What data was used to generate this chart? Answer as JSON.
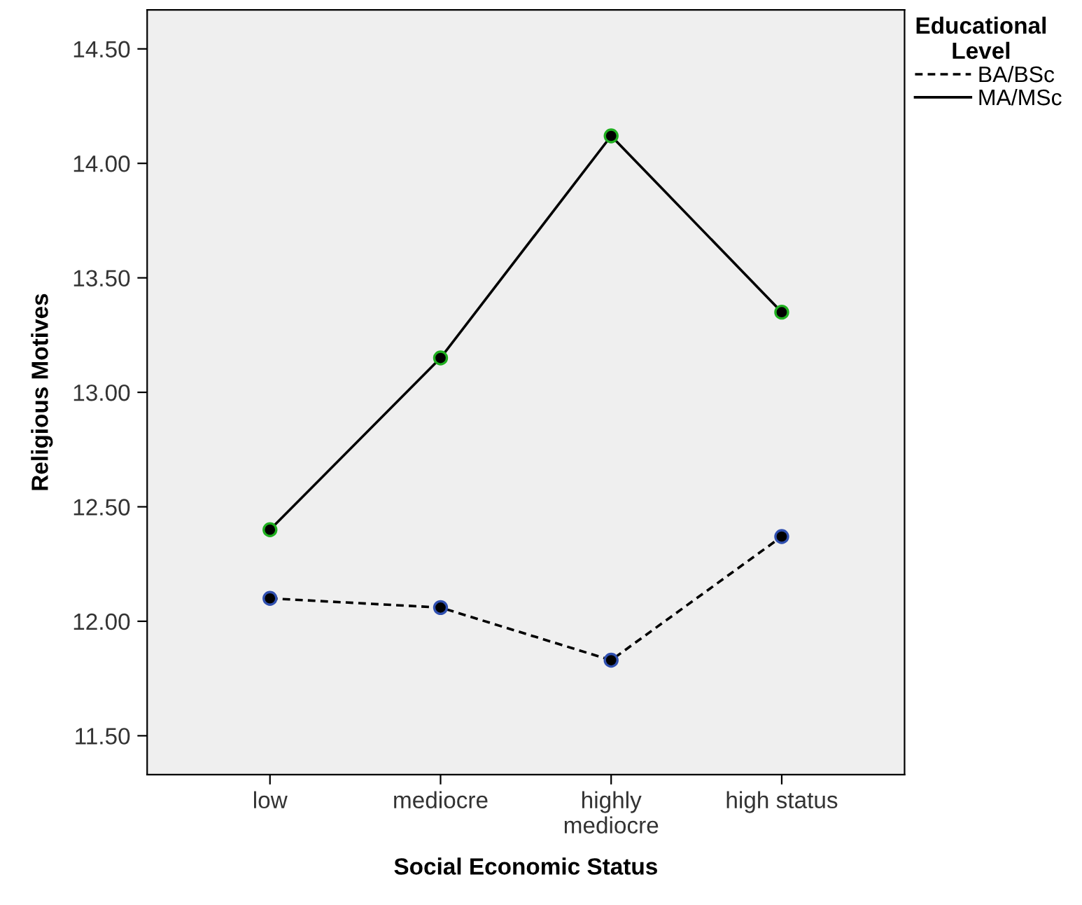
{
  "chart_data": {
    "type": "line",
    "xlabel": "Social Economic Status",
    "ylabel": "Religious Motives",
    "legend_title": "Educational\nLevel",
    "categories": [
      "low",
      "mediocre",
      "highly\nmediocre",
      "high status"
    ],
    "series": [
      {
        "name": "BA/BSc",
        "color": "#000000",
        "line_style": "dashed",
        "values": [
          12.1,
          12.06,
          11.83,
          12.37
        ]
      },
      {
        "name": "MA/MSc",
        "color": "#000000",
        "line_style": "solid",
        "values": [
          12.4,
          13.15,
          14.12,
          13.35
        ]
      }
    ],
    "ylim": [
      11.33,
      14.67
    ],
    "yticks": [
      {
        "value": 11.5,
        "label": "11.50"
      },
      {
        "value": 12,
        "label": "12.00"
      },
      {
        "value": 12.5,
        "label": "12.50"
      },
      {
        "value": 13,
        "label": "13.00"
      },
      {
        "value": 13.5,
        "label": "13.50"
      },
      {
        "value": 14,
        "label": "14.00"
      },
      {
        "value": 14.5,
        "label": "14.50"
      }
    ],
    "marker": "circle",
    "grid": false,
    "legend": "top right"
  }
}
